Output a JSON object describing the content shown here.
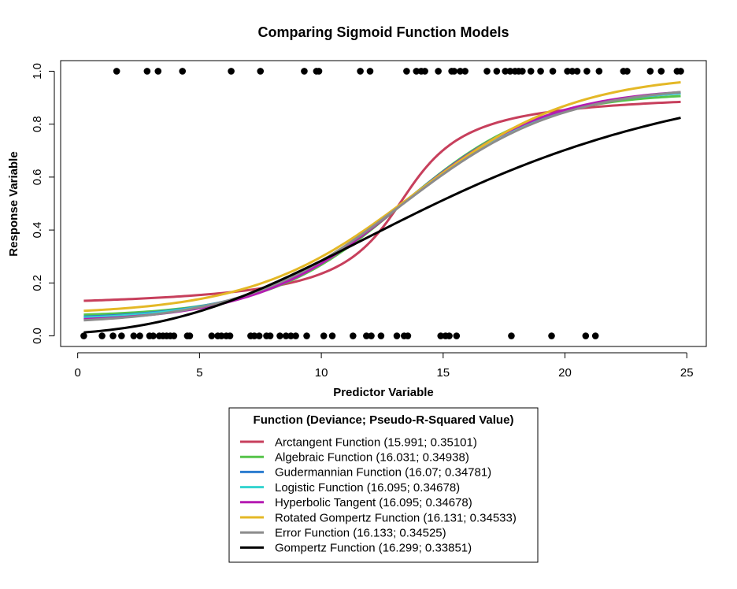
{
  "chart_data": {
    "type": "scatter",
    "title": "Comparing Sigmoid Function Models",
    "xlabel": "Predictor Variable",
    "ylabel": "Response Variable",
    "xlim": [
      -0.7,
      25.8
    ],
    "ylim": [
      -0.04,
      1.04
    ],
    "x_ticks": [
      0,
      5,
      10,
      15,
      20,
      25
    ],
    "y_ticks": [
      0.0,
      0.2,
      0.4,
      0.6,
      0.8,
      1.0
    ],
    "x_tick_labels": [
      "0",
      "5",
      "10",
      "15",
      "20",
      "25"
    ],
    "y_tick_labels": [
      "0.0",
      "0.2",
      "0.4",
      "0.6",
      "0.8",
      "1.0"
    ],
    "grid": false,
    "points_y1": [
      1.6,
      2.85,
      3.3,
      4.3,
      6.3,
      7.5,
      9.3,
      9.8,
      9.9,
      11.6,
      12.0,
      13.5,
      13.9,
      14.1,
      14.25,
      14.8,
      15.35,
      15.45,
      15.7,
      15.9,
      16.8,
      17.2,
      17.55,
      17.75,
      17.95,
      18.1,
      18.25,
      18.6,
      19.0,
      19.5,
      20.1,
      20.3,
      20.5,
      20.9,
      21.4,
      22.4,
      22.55,
      23.5,
      23.95,
      24.6,
      24.75
    ],
    "points_y0": [
      0.25,
      1.0,
      1.45,
      1.8,
      2.3,
      2.55,
      2.95,
      3.1,
      3.35,
      3.5,
      3.65,
      3.8,
      3.95,
      4.5,
      4.6,
      5.5,
      5.75,
      5.9,
      6.1,
      6.25,
      7.1,
      7.25,
      7.45,
      7.75,
      7.9,
      8.3,
      8.55,
      8.75,
      8.95,
      9.4,
      10.1,
      10.45,
      11.3,
      11.85,
      12.05,
      12.45,
      13.1,
      13.4,
      13.55,
      14.9,
      15.1,
      15.25,
      15.55,
      17.8,
      19.45,
      20.85,
      21.25
    ],
    "series": [
      {
        "name": "Arctangent Function (15.991; 0.35101)",
        "color": "#c73f5c",
        "kind": "atan",
        "center": 13.3,
        "scale": 1.95,
        "ymin": 0.093,
        "ymax": 0.929,
        "x_start": 0.25,
        "x_end": 24.75
      },
      {
        "name": "Algebraic Function (16.031; 0.34938)",
        "color": "#56c44a",
        "kind": "logistic",
        "center": 13.3,
        "scale": 2.75,
        "ymin": 0.073,
        "ymax": 0.919,
        "x_start": 0.25,
        "x_end": 24.75
      },
      {
        "name": "Gudermannian Function (16.07; 0.34781)",
        "color": "#2b7dcf",
        "kind": "logistic",
        "center": 13.3,
        "scale": 2.95,
        "ymin": 0.062,
        "ymax": 0.934,
        "x_start": 0.25,
        "x_end": 24.75
      },
      {
        "name": "Logistic Function (16.095; 0.34678)",
        "color": "#34d4cf",
        "kind": "logistic",
        "center": 13.3,
        "scale": 3.0,
        "ymin": 0.058,
        "ymax": 0.936,
        "x_start": 0.25,
        "x_end": 24.75
      },
      {
        "name": "Hyperbolic Tangent (16.095; 0.34678)",
        "color": "#b51bb2",
        "kind": "logistic",
        "center": 13.3,
        "scale": 3.0,
        "ymin": 0.052,
        "ymax": 0.94,
        "x_start": 0.25,
        "x_end": 24.75
      },
      {
        "name": "Rotated Gompertz Function (16.131; 0.34533)",
        "color": "#e4b826",
        "kind": "logistic",
        "center": 13.8,
        "scale": 3.3,
        "ymin": 0.08,
        "ymax": 0.99,
        "x_start": 0.25,
        "x_end": 24.75
      },
      {
        "name": "Error Function (16.133; 0.34525)",
        "color": "#8c8c8c",
        "kind": "logistic",
        "center": 13.3,
        "scale": 3.25,
        "ymin": 0.043,
        "ymax": 0.947,
        "x_start": 0.25,
        "x_end": 24.75
      },
      {
        "name": "Gompertz Function (16.299; 0.33851)",
        "color": "#000000",
        "kind": "gompertz",
        "b": 0.127,
        "c": 1.915,
        "x_start": 0.25,
        "x_end": 24.75
      }
    ],
    "legend": {
      "title": "Function (Deviance; Pseudo-R-Squared Value)",
      "placement": "bottom"
    }
  }
}
